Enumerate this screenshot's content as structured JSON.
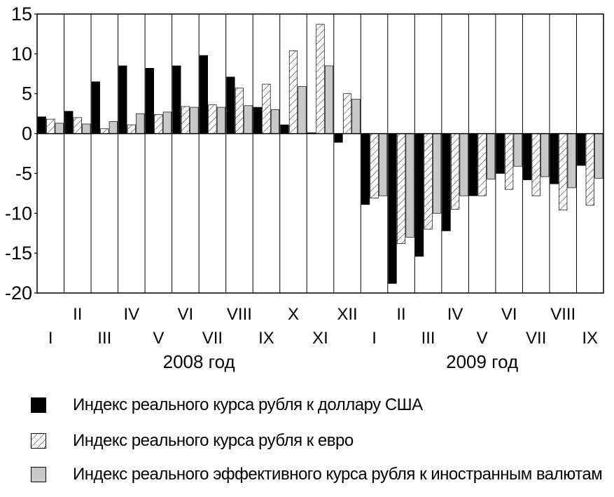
{
  "chart_data": {
    "type": "bar",
    "title": "",
    "xlabel": "",
    "ylabel": "",
    "ylim": [
      -20,
      15
    ],
    "yticks": [
      15,
      10,
      5,
      0,
      -5,
      -10,
      -15,
      -20
    ],
    "ytick_labels": [
      "15",
      "10",
      "5",
      "0",
      "-5",
      "-10",
      "-15",
      "-20"
    ],
    "categories": [
      "I",
      "II",
      "III",
      "IV",
      "V",
      "VI",
      "VII",
      "VIII",
      "IX",
      "X",
      "XI",
      "XII",
      "I",
      "II",
      "III",
      "IV",
      "V",
      "VI",
      "VII",
      "VIII",
      "IX"
    ],
    "year_labels": [
      {
        "label": "2008 год",
        "first_index": 0,
        "last_index": 11
      },
      {
        "label": "2009 год",
        "first_index": 12,
        "last_index": 20
      }
    ],
    "grid": "vertical-separators",
    "legend_position": "bottom",
    "series": [
      {
        "name": "Индекс реального курса рубля к доллару США",
        "style": "solid",
        "color": "#000000",
        "values": [
          2.1,
          2.8,
          6.5,
          8.5,
          8.2,
          8.5,
          9.8,
          7.1,
          3.3,
          1.1,
          0.1,
          -1.1,
          -8.9,
          -18.8,
          -15.4,
          -12.2,
          -7.8,
          -5.0,
          -5.8,
          -6.3,
          -4.0
        ]
      },
      {
        "name": "Индекс реального курса рубля к евро",
        "style": "hatched",
        "color": "#ffffff",
        "values": [
          1.8,
          2.0,
          0.6,
          1.1,
          2.4,
          3.4,
          3.6,
          5.7,
          6.2,
          10.4,
          13.7,
          5.0,
          -8.1,
          -13.8,
          -12.0,
          -9.5,
          -7.8,
          -7.0,
          -7.8,
          -9.6,
          -9.0
        ]
      },
      {
        "name": "Индекс реального эффективного курса рубля к иностранным валютам",
        "style": "gray",
        "color": "#c8c8c8",
        "values": [
          1.3,
          1.2,
          1.5,
          2.5,
          2.7,
          3.3,
          3.3,
          3.5,
          3.0,
          5.9,
          8.5,
          4.3,
          -7.8,
          -13.0,
          -10.0,
          -7.8,
          -5.7,
          -4.1,
          -5.4,
          -6.8,
          -5.6
        ]
      }
    ]
  }
}
